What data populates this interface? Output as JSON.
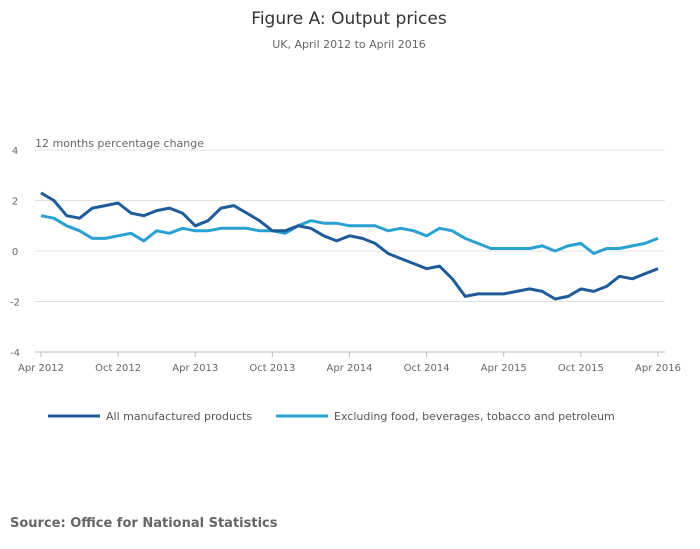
{
  "chart_data": {
    "type": "line",
    "title": "Figure A: Output prices",
    "subtitle": "UK, April 2012 to April 2016",
    "ylabel": "12 months percentage change",
    "xlabel": "",
    "ylim": [
      -4,
      4
    ],
    "yticks": [
      "4",
      "2",
      "0",
      "-2",
      "-4"
    ],
    "x_start": "Apr 2012",
    "x_end": "Apr 2016",
    "xticks": [
      "Apr 2012",
      "Oct 2012",
      "Apr 2013",
      "Oct 2013",
      "Apr 2014",
      "Oct 2014",
      "Apr 2015",
      "Oct 2015",
      "Apr 2016"
    ],
    "grid": true,
    "legend_position": "bottom",
    "series": [
      {
        "name": "All manufactured products",
        "color": "#1f5c99",
        "values": [
          2.3,
          2.0,
          1.4,
          1.3,
          1.7,
          1.8,
          1.9,
          1.5,
          1.4,
          1.6,
          1.7,
          1.5,
          1.0,
          1.2,
          1.7,
          1.8,
          1.5,
          1.2,
          0.8,
          0.8,
          1.0,
          0.9,
          0.6,
          0.4,
          0.6,
          0.5,
          0.3,
          -0.1,
          -0.3,
          -0.5,
          -0.7,
          -0.6,
          -1.1,
          -1.8,
          -1.7,
          -1.7,
          -1.7,
          -1.6,
          -1.5,
          -1.6,
          -1.9,
          -1.8,
          -1.5,
          -1.6,
          -1.4,
          -1.0,
          -1.1,
          -0.9,
          -0.7
        ]
      },
      {
        "name": "Excluding food, beverages, tobacco and petroleum",
        "color": "#2aa1d3",
        "values": [
          1.4,
          1.3,
          1.0,
          0.8,
          0.5,
          0.5,
          0.6,
          0.7,
          0.4,
          0.8,
          0.7,
          0.9,
          0.8,
          0.8,
          0.9,
          0.9,
          0.9,
          0.8,
          0.8,
          0.7,
          1.0,
          1.2,
          1.1,
          1.1,
          1.0,
          1.0,
          1.0,
          0.8,
          0.9,
          0.8,
          0.6,
          0.9,
          0.8,
          0.5,
          0.3,
          0.1,
          0.1,
          0.1,
          0.1,
          0.2,
          0.0,
          0.2,
          0.3,
          -0.1,
          0.1,
          0.1,
          0.2,
          0.3,
          0.5
        ]
      }
    ],
    "source": "Source: Office for National Statistics"
  }
}
